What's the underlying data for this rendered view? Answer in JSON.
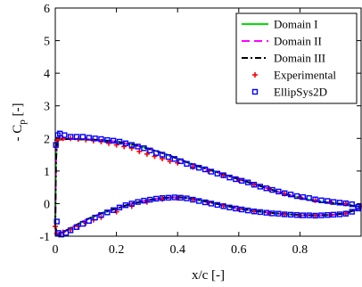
{
  "chart_data": {
    "type": "line",
    "xlabel": "x/c [-]",
    "ylabel_main": "- C",
    "ylabel_sub": "p",
    "ylabel_unit": " [-]",
    "xlim": [
      0,
      1
    ],
    "ylim": [
      -1,
      6
    ],
    "xticks": [
      0,
      0.2,
      0.4,
      0.6,
      0.8
    ],
    "xtick_labels": [
      "0",
      "0.2",
      "0.4",
      "0.6",
      "0.8"
    ],
    "yticks": [
      -1,
      0,
      1,
      2,
      3,
      4,
      5,
      6
    ],
    "ytick_labels": [
      "-1",
      "0",
      "1",
      "2",
      "3",
      "4",
      "5",
      "6"
    ],
    "grid": false,
    "legend_position": "top-right",
    "x_suction": [
      0,
      0.002,
      0.005,
      0.01,
      0.02,
      0.04,
      0.06,
      0.08,
      0.1,
      0.15,
      0.2,
      0.25,
      0.3,
      0.35,
      0.4,
      0.45,
      0.5,
      0.55,
      0.6,
      0.65,
      0.7,
      0.75,
      0.8,
      0.85,
      0.9,
      0.95,
      1.0
    ],
    "y_suction": [
      -0.7,
      1.2,
      1.85,
      1.95,
      1.97,
      1.98,
      1.98,
      1.97,
      1.97,
      1.95,
      1.9,
      1.82,
      1.7,
      1.55,
      1.38,
      1.2,
      1.05,
      0.9,
      0.75,
      0.6,
      0.45,
      0.3,
      0.18,
      0.08,
      0.02,
      -0.02,
      -0.12
    ],
    "x_pressure": [
      0,
      0.005,
      0.01,
      0.02,
      0.04,
      0.06,
      0.08,
      0.1,
      0.15,
      0.2,
      0.25,
      0.3,
      0.35,
      0.4,
      0.45,
      0.5,
      0.55,
      0.6,
      0.65,
      0.7,
      0.75,
      0.8,
      0.85,
      0.9,
      0.95,
      1.0
    ],
    "y_pressure": [
      -0.7,
      -0.9,
      -0.95,
      -0.9,
      -0.8,
      -0.7,
      -0.6,
      -0.5,
      -0.3,
      -0.15,
      0.0,
      0.1,
      0.17,
      0.2,
      0.15,
      0.05,
      -0.05,
      -0.15,
      -0.22,
      -0.28,
      -0.32,
      -0.35,
      -0.36,
      -0.35,
      -0.3,
      -0.12
    ],
    "series": [
      {
        "name": "Domain I",
        "style": "solid",
        "color": "#00e000"
      },
      {
        "name": "Domain II",
        "style": "dashed",
        "color": "#ff00ff"
      },
      {
        "name": "Domain III",
        "style": "dashdot",
        "color": "#000000"
      },
      {
        "name": "Experimental",
        "marker": "plus",
        "color": "#ff0000",
        "x": [
          0,
          0.005,
          0.012,
          0.025,
          0.05,
          0.075,
          0.1,
          0.125,
          0.15,
          0.175,
          0.2,
          0.225,
          0.25,
          0.275,
          0.3,
          0.325,
          0.35,
          0.375,
          0.4,
          0.45,
          0.5,
          0.55,
          0.6,
          0.65,
          0.7,
          0.75,
          0.8,
          0.85,
          0.9,
          0.95,
          1.0,
          0.005,
          0.012,
          0.025,
          0.05,
          0.075,
          0.1,
          0.125,
          0.15,
          0.2,
          0.25,
          0.3,
          0.35,
          0.4,
          0.45,
          0.5,
          0.55,
          0.6,
          0.65,
          0.7,
          0.75,
          0.8,
          0.85,
          0.9,
          0.95
        ],
        "y": [
          -0.7,
          1.95,
          2.0,
          2.0,
          2.0,
          1.98,
          1.96,
          1.93,
          1.9,
          1.85,
          1.8,
          1.75,
          1.7,
          1.6,
          1.52,
          1.45,
          1.38,
          1.3,
          1.25,
          1.12,
          1.0,
          0.86,
          0.72,
          0.58,
          0.45,
          0.3,
          0.2,
          0.1,
          0.05,
          0.0,
          -0.08,
          -0.92,
          -0.95,
          -0.88,
          -0.8,
          -0.7,
          -0.6,
          -0.5,
          -0.42,
          -0.25,
          -0.08,
          0.05,
          0.14,
          0.17,
          0.12,
          0.03,
          -0.07,
          -0.17,
          -0.24,
          -0.3,
          -0.33,
          -0.37,
          -0.37,
          -0.35,
          -0.3
        ]
      },
      {
        "name": "EllipSys2D",
        "marker": "square",
        "color": "#0000ff",
        "x": [
          0.002,
          0.008,
          0.015,
          0.03,
          0.05,
          0.07,
          0.09,
          0.11,
          0.13,
          0.15,
          0.17,
          0.19,
          0.21,
          0.23,
          0.25,
          0.27,
          0.29,
          0.31,
          0.33,
          0.35,
          0.37,
          0.39,
          0.41,
          0.43,
          0.45,
          0.47,
          0.49,
          0.51,
          0.53,
          0.55,
          0.57,
          0.59,
          0.61,
          0.63,
          0.65,
          0.67,
          0.69,
          0.71,
          0.73,
          0.75,
          0.77,
          0.79,
          0.81,
          0.83,
          0.85,
          0.87,
          0.89,
          0.91,
          0.93,
          0.95,
          0.97,
          0.99,
          0.005,
          0.01,
          0.02,
          0.035,
          0.05,
          0.07,
          0.09,
          0.11,
          0.13,
          0.15,
          0.17,
          0.19,
          0.21,
          0.23,
          0.25,
          0.27,
          0.29,
          0.31,
          0.33,
          0.35,
          0.37,
          0.39,
          0.41,
          0.43,
          0.45,
          0.47,
          0.49,
          0.51,
          0.53,
          0.55,
          0.57,
          0.59,
          0.61,
          0.63,
          0.65,
          0.67,
          0.69,
          0.71,
          0.73,
          0.75,
          0.77,
          0.79,
          0.81,
          0.83,
          0.85,
          0.87,
          0.89,
          0.91,
          0.93,
          0.95,
          0.97,
          0.99
        ],
        "y": [
          1.8,
          2.1,
          2.15,
          2.1,
          2.05,
          2.05,
          2.05,
          2.02,
          2.0,
          1.98,
          1.95,
          1.93,
          1.9,
          1.85,
          1.8,
          1.75,
          1.7,
          1.63,
          1.55,
          1.5,
          1.43,
          1.37,
          1.3,
          1.22,
          1.15,
          1.1,
          1.05,
          0.98,
          0.92,
          0.87,
          0.8,
          0.75,
          0.7,
          0.65,
          0.58,
          0.52,
          0.47,
          0.42,
          0.37,
          0.32,
          0.28,
          0.23,
          0.2,
          0.17,
          0.13,
          0.1,
          0.08,
          0.05,
          0.03,
          0.01,
          -0.02,
          -0.1,
          -0.55,
          -0.9,
          -0.95,
          -0.9,
          -0.82,
          -0.72,
          -0.62,
          -0.53,
          -0.43,
          -0.35,
          -0.27,
          -0.2,
          -0.12,
          -0.05,
          0.0,
          0.05,
          0.09,
          0.12,
          0.15,
          0.17,
          0.18,
          0.19,
          0.18,
          0.16,
          0.12,
          0.08,
          0.04,
          0.0,
          -0.04,
          -0.08,
          -0.12,
          -0.15,
          -0.18,
          -0.21,
          -0.24,
          -0.26,
          -0.28,
          -0.3,
          -0.31,
          -0.33,
          -0.34,
          -0.35,
          -0.36,
          -0.36,
          -0.37,
          -0.36,
          -0.35,
          -0.34,
          -0.33,
          -0.31,
          -0.25,
          -0.15
        ]
      }
    ]
  }
}
